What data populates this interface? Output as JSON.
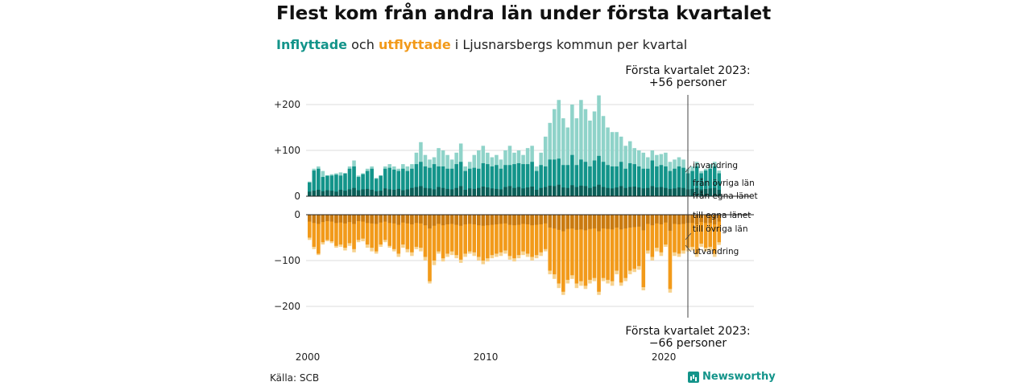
{
  "title": "Flest kom från andra län under första kvartalet",
  "subtitle": {
    "in_word": "Inflyttade",
    "and": "och",
    "out_word": "utflyttade",
    "rest": "i Ljusnarsbergs kommun per kvartal"
  },
  "source": "Källa: SCB",
  "brand": {
    "name": "Newsworthy",
    "icon": "newsworthy-logo-icon"
  },
  "colors": {
    "in_total": "#8fd3c9",
    "in_ovriga": "#13948a",
    "in_egna": "#0b5e57",
    "out_total": "#f7d28e",
    "out_ovriga": "#f29a1a",
    "out_egna": "#c97a10"
  },
  "annotations": {
    "top_line1": "Första kvartalet 2023:",
    "top_line2": "+56 personer",
    "bottom_line1": "Första kvartalet 2023:",
    "bottom_line2": "−66 personer"
  },
  "chart_data": {
    "type": "bar",
    "stacked": true,
    "x": {
      "start_year": 2000,
      "quarters": 93,
      "ticks": [
        {
          "year": 2000,
          "label": "2000"
        },
        {
          "year": 2010,
          "label": "2010"
        },
        {
          "year": 2020,
          "label": "2020"
        }
      ]
    },
    "y_top": {
      "ylim": [
        0,
        230
      ],
      "ticks": [
        {
          "value": 0,
          "label": "0"
        },
        {
          "value": 100,
          "label": "+100"
        },
        {
          "value": 200,
          "label": "+200"
        }
      ]
    },
    "y_bottom": {
      "ylim": [
        -225,
        0
      ],
      "ticks": [
        {
          "value": 0,
          "label": "0"
        },
        {
          "value": -100,
          "label": "−100"
        },
        {
          "value": -200,
          "label": "−200"
        }
      ]
    },
    "series_labels": {
      "in": [
        "invandring",
        "från övriga län",
        "från egna länet"
      ],
      "out": [
        "till egna länet",
        "till övriga län",
        "utvandring"
      ]
    },
    "inflyttade_total": [
      32,
      60,
      65,
      55,
      45,
      48,
      50,
      52,
      45,
      65,
      78,
      45,
      50,
      60,
      65,
      40,
      45,
      65,
      70,
      65,
      60,
      70,
      65,
      70,
      95,
      118,
      90,
      80,
      85,
      105,
      100,
      90,
      80,
      95,
      115,
      65,
      75,
      90,
      100,
      110,
      95,
      85,
      90,
      80,
      100,
      110,
      95,
      100,
      90,
      105,
      110,
      65,
      95,
      130,
      160,
      190,
      210,
      170,
      150,
      200,
      170,
      210,
      190,
      165,
      185,
      220,
      175,
      150,
      140,
      140,
      130,
      110,
      120,
      105,
      100,
      95,
      85,
      100,
      90,
      92,
      95,
      75,
      80,
      85,
      80,
      60,
      65,
      75,
      55,
      60,
      70,
      75,
      56
    ],
    "inflyttade_ovriga_egna": [
      30,
      56,
      60,
      42,
      45,
      45,
      47,
      45,
      50,
      60,
      65,
      42,
      48,
      55,
      60,
      38,
      45,
      60,
      62,
      58,
      55,
      60,
      55,
      60,
      70,
      75,
      65,
      62,
      70,
      65,
      65,
      60,
      60,
      70,
      75,
      55,
      60,
      62,
      60,
      72,
      70,
      65,
      68,
      60,
      68,
      68,
      70,
      72,
      70,
      70,
      75,
      55,
      68,
      65,
      80,
      80,
      82,
      68,
      68,
      90,
      68,
      80,
      75,
      65,
      78,
      88,
      75,
      68,
      65,
      65,
      75,
      60,
      72,
      70,
      65,
      60,
      60,
      78,
      65,
      68,
      65,
      55,
      60,
      65,
      62,
      50,
      55,
      65,
      50,
      56,
      60,
      65,
      50
    ],
    "inflyttade_egna": [
      10,
      12,
      14,
      11,
      13,
      12,
      10,
      14,
      12,
      15,
      18,
      13,
      15,
      16,
      14,
      11,
      12,
      17,
      15,
      14,
      16,
      13,
      15,
      18,
      20,
      22,
      18,
      17,
      15,
      20,
      18,
      16,
      15,
      18,
      22,
      14,
      17,
      16,
      18,
      21,
      19,
      17,
      16,
      15,
      20,
      22,
      18,
      20,
      17,
      19,
      21,
      14,
      18,
      20,
      23,
      22,
      25,
      19,
      18,
      24,
      20,
      23,
      22,
      18,
      21,
      25,
      20,
      18,
      17,
      19,
      22,
      18,
      20,
      21,
      19,
      17,
      18,
      22,
      19,
      20,
      18,
      16,
      17,
      19,
      18,
      15,
      16,
      18,
      15,
      16,
      17,
      18,
      14
    ],
    "utflyttade_total": [
      -55,
      -75,
      -88,
      -65,
      -58,
      -62,
      -72,
      -70,
      -78,
      -68,
      -82,
      -60,
      -58,
      -72,
      -80,
      -85,
      -70,
      -60,
      -72,
      -80,
      -92,
      -72,
      -82,
      -90,
      -75,
      -80,
      -100,
      -150,
      -110,
      -85,
      -102,
      -92,
      -88,
      -95,
      -105,
      -92,
      -85,
      -90,
      -100,
      -108,
      -102,
      -95,
      -92,
      -90,
      -85,
      -98,
      -102,
      -95,
      -88,
      -92,
      -100,
      -95,
      -90,
      -80,
      -130,
      -140,
      -160,
      -175,
      -150,
      -140,
      -160,
      -155,
      -162,
      -150,
      -145,
      -175,
      -145,
      -150,
      -155,
      -130,
      -155,
      -145,
      -130,
      -125,
      -120,
      -165,
      -85,
      -100,
      -80,
      -90,
      -70,
      -170,
      -90,
      -92,
      -85,
      -80,
      -78,
      -92,
      -70,
      -80,
      -78,
      -92,
      -66
    ],
    "utflyttade_ovriga_egna": [
      -50,
      -70,
      -85,
      -60,
      -55,
      -58,
      -68,
      -65,
      -72,
      -62,
      -75,
      -55,
      -52,
      -65,
      -72,
      -80,
      -65,
      -55,
      -68,
      -75,
      -85,
      -65,
      -75,
      -82,
      -70,
      -72,
      -92,
      -145,
      -100,
      -80,
      -95,
      -85,
      -80,
      -88,
      -98,
      -85,
      -80,
      -82,
      -92,
      -100,
      -95,
      -88,
      -85,
      -82,
      -78,
      -90,
      -95,
      -88,
      -80,
      -85,
      -92,
      -88,
      -82,
      -75,
      -122,
      -130,
      -150,
      -168,
      -142,
      -132,
      -150,
      -145,
      -155,
      -142,
      -138,
      -168,
      -138,
      -142,
      -145,
      -122,
      -148,
      -138,
      -122,
      -118,
      -112,
      -158,
      -78,
      -92,
      -72,
      -82,
      -65,
      -162,
      -82,
      -85,
      -78,
      -72,
      -70,
      -85,
      -63,
      -72,
      -70,
      -85,
      -60
    ],
    "utflyttade_egna": [
      -15,
      -18,
      -20,
      -16,
      -14,
      -15,
      -18,
      -17,
      -19,
      -16,
      -20,
      -14,
      -15,
      -18,
      -19,
      -20,
      -17,
      -15,
      -18,
      -19,
      -22,
      -17,
      -19,
      -21,
      -18,
      -19,
      -23,
      -30,
      -24,
      -20,
      -23,
      -21,
      -20,
      -22,
      -24,
      -21,
      -20,
      -21,
      -23,
      -24,
      -23,
      -22,
      -21,
      -20,
      -19,
      -22,
      -23,
      -22,
      -20,
      -21,
      -23,
      -22,
      -21,
      -19,
      -28,
      -30,
      -33,
      -36,
      -31,
      -30,
      -33,
      -32,
      -34,
      -31,
      -30,
      -36,
      -30,
      -31,
      -32,
      -28,
      -32,
      -30,
      -28,
      -27,
      -26,
      -34,
      -20,
      -23,
      -19,
      -21,
      -17,
      -35,
      -20,
      -21,
      -20,
      -18,
      -18,
      -21,
      -16,
      -18,
      -18,
      -21,
      -15
    ]
  }
}
